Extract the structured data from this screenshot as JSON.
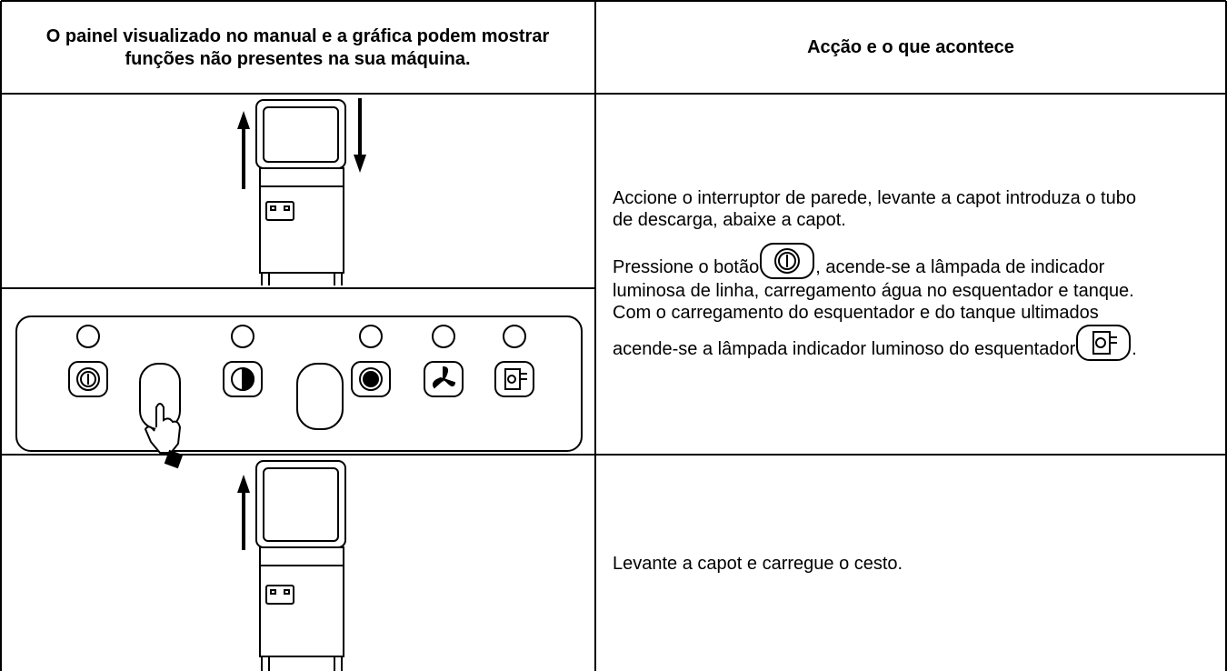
{
  "header": {
    "left": "O painel visualizado no manual e a gráfica podem mostrar funções não presentes na sua máquina.",
    "right": "Acção e o que acontece"
  },
  "rows": [
    {
      "paragraphs": [
        "Accione o interruptor de parede, levante a capot introduza o tubo de descarga, abaixe a capot.",
        "Pressione o botão",
        ", acende-se a lâmpada de indicador luminosa de linha, carregamento água no esquentador e tanque.",
        "Com o carregamento do esquentador e do tanque ultimados acende-se a lâmpada indicador luminoso do esquentador",
        "."
      ]
    },
    {
      "text": "Levante a capot e carregue o cesto."
    }
  ]
}
